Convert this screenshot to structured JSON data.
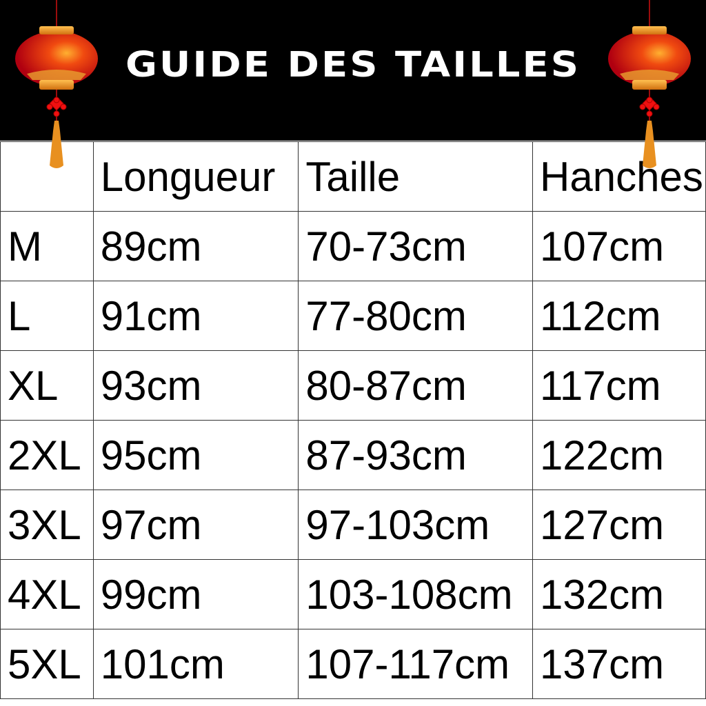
{
  "title": "GUIDE DES TAILLES",
  "headers": [
    "",
    "Longueur",
    "Taille",
    "Hanches"
  ],
  "rows": [
    [
      "M",
      "89cm",
      "70-73cm",
      "107cm"
    ],
    [
      "L",
      "91cm",
      "77-80cm",
      "112cm"
    ],
    [
      "XL",
      "93cm",
      "80-87cm",
      "117cm"
    ],
    [
      "2XL",
      "95cm",
      "87-93cm",
      "122cm"
    ],
    [
      "3XL",
      "97cm",
      "97-103cm",
      "127cm"
    ],
    [
      "4XL",
      "99cm",
      "103-108cm",
      "132cm"
    ],
    [
      "5XL",
      "101cm",
      "107-117cm",
      "137cm"
    ]
  ],
  "colors": {
    "header_bg": "#000000",
    "lantern_red": "#d0101a",
    "lantern_gold": "#f0a020"
  },
  "icons": [
    "chinese-lantern-icon"
  ]
}
